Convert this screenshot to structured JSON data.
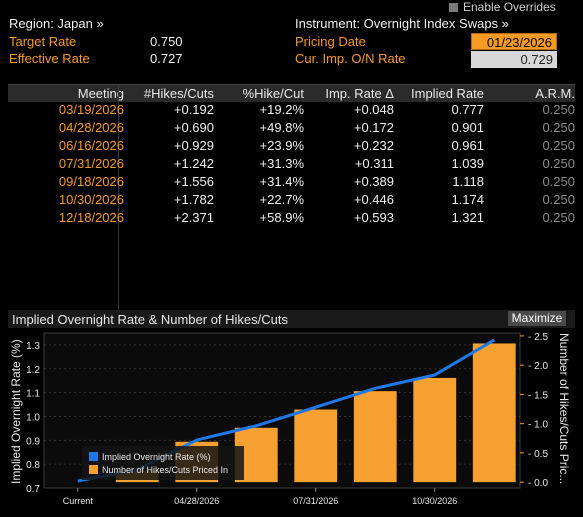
{
  "overrides": {
    "label": "Enable Overrides"
  },
  "header": {
    "region": "Region: Japan »",
    "instrument": "Instrument: Overnight Index Swaps »",
    "target_rate_label": "Target Rate",
    "target_rate_value": "0.750",
    "effective_rate_label": "Effective Rate",
    "effective_rate_value": "0.727",
    "pricing_date_label": "Pricing Date",
    "pricing_date_value": "01/23/2026",
    "cur_imp_label": "Cur. Imp. O/N Rate",
    "cur_imp_value": "0.729"
  },
  "table": {
    "columns": [
      "Meeting",
      "#Hikes/Cuts",
      "%Hike/Cut",
      "Imp. Rate Δ",
      "Implied Rate",
      "A.R.M."
    ],
    "rows": [
      [
        "03/19/2026",
        "+0.192",
        "+19.2%",
        "+0.048",
        "0.777",
        "0.250"
      ],
      [
        "04/28/2026",
        "+0.690",
        "+49.8%",
        "+0.172",
        "0.901",
        "0.250"
      ],
      [
        "06/16/2026",
        "+0.929",
        "+23.9%",
        "+0.232",
        "0.961",
        "0.250"
      ],
      [
        "07/31/2026",
        "+1.242",
        "+31.3%",
        "+0.311",
        "1.039",
        "0.250"
      ],
      [
        "09/18/2026",
        "+1.556",
        "+31.4%",
        "+0.389",
        "1.118",
        "0.250"
      ],
      [
        "10/30/2026",
        "+1.782",
        "+22.7%",
        "+0.446",
        "1.174",
        "0.250"
      ],
      [
        "12/18/2026",
        "+2.371",
        "+58.9%",
        "+0.593",
        "1.321",
        "0.250"
      ]
    ]
  },
  "chart_panel": {
    "title": "Implied Overnight Rate & Number of Hikes/Cuts",
    "maximize_label": "Maximize"
  },
  "chart_data": {
    "type": "bar",
    "title": "Implied Overnight Rate & Number of Hikes/Cuts",
    "ylabel_left": "Implied Overnight Rate (%)",
    "ylabel_right": "Number of Hikes/Cuts Pric...",
    "ylim_left": [
      0.7,
      1.35
    ],
    "ylim_right": [
      -0.1,
      2.55
    ],
    "left_ticks": [
      "0.7",
      "0.8",
      "0.9",
      "1.0",
      "1.1",
      "1.2",
      "1.3"
    ],
    "right_ticks": [
      "0.0",
      "0.5",
      "1.0",
      "1.5",
      "2.0",
      "2.5"
    ],
    "x_tick_labels": [
      "Current",
      "04/28/2026",
      "07/31/2026",
      "10/30/2026"
    ],
    "categories": [
      "Current",
      "03/19/2026",
      "04/28/2026",
      "06/16/2026",
      "07/31/2026",
      "09/18/2026",
      "10/30/2026",
      "12/18/2026"
    ],
    "series": [
      {
        "name": "Implied Overnight Rate (%)",
        "type": "line",
        "color": "#1e78e6",
        "values": [
          0.729,
          0.777,
          0.901,
          0.961,
          1.039,
          1.118,
          1.174,
          1.321
        ]
      },
      {
        "name": "Number of Hikes/Cuts Priced In",
        "type": "bar",
        "color": "#f5a030",
        "values": [
          0.0,
          0.192,
          0.69,
          0.929,
          1.242,
          1.556,
          1.782,
          2.371
        ]
      }
    ],
    "legend": "bottom-left"
  }
}
